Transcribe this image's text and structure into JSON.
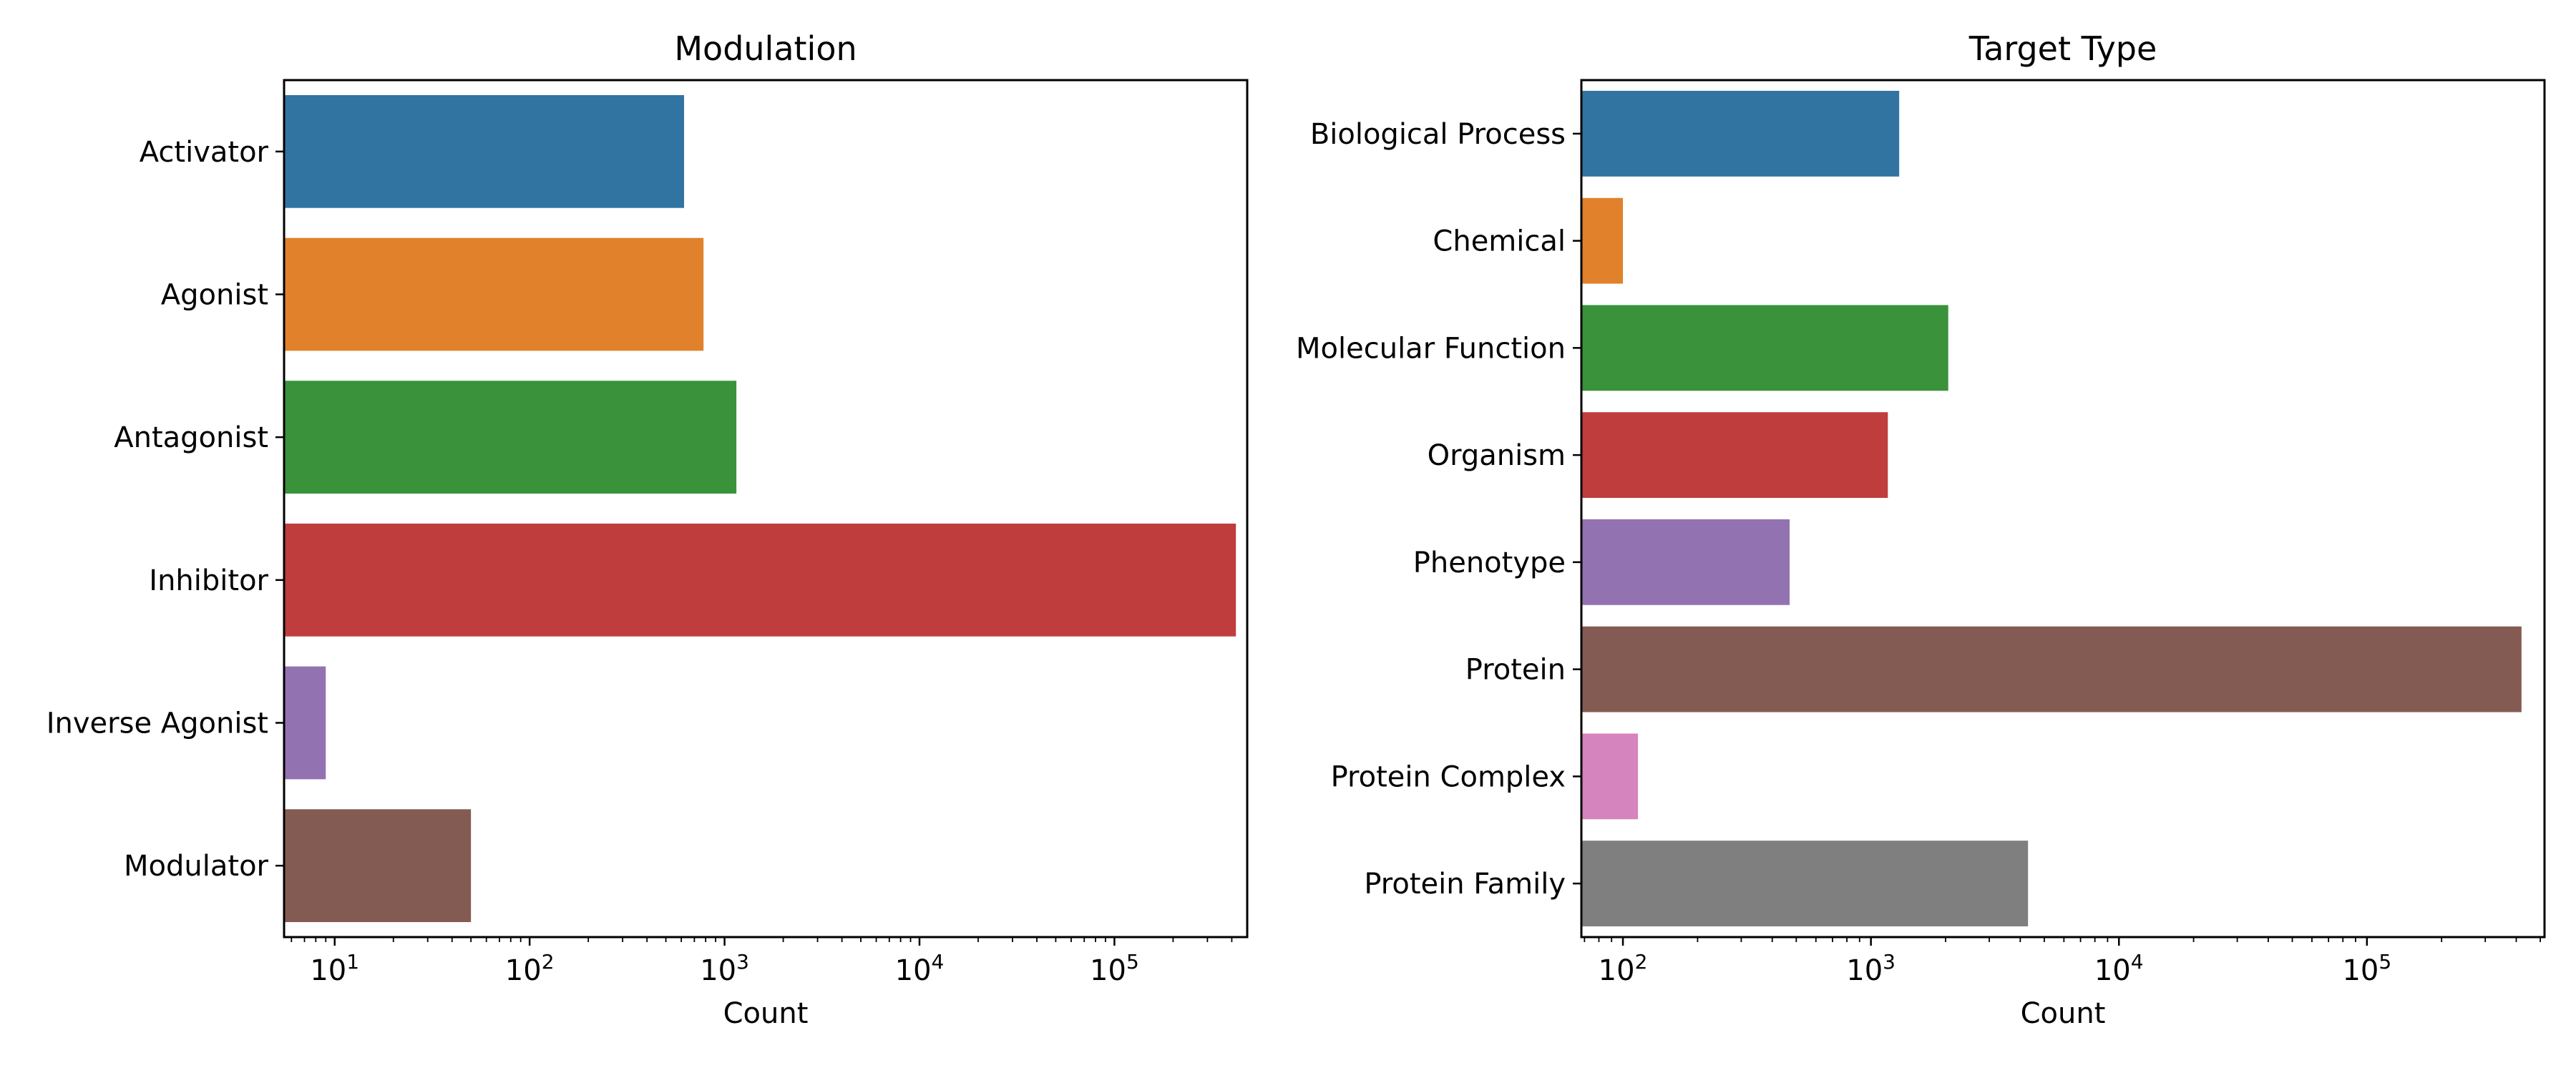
{
  "chart_data": [
    {
      "type": "bar",
      "orientation": "horizontal",
      "title": "Modulation",
      "xlabel": "Count",
      "ylabel": "",
      "xscale": "log",
      "xlim": [
        5.5,
        480000
      ],
      "xticks": [
        10,
        100,
        1000,
        10000,
        100000
      ],
      "xtick_labels": [
        {
          "base": "10",
          "exp": "1"
        },
        {
          "base": "10",
          "exp": "2"
        },
        {
          "base": "10",
          "exp": "3"
        },
        {
          "base": "10",
          "exp": "4"
        },
        {
          "base": "10",
          "exp": "5"
        }
      ],
      "categories": [
        "Activator",
        "Agonist",
        "Antagonist",
        "Inhibitor",
        "Inverse Agonist",
        "Modulator"
      ],
      "values": [
        620,
        780,
        1150,
        420000,
        9,
        50
      ],
      "colors": [
        "#3274a1",
        "#e1812c",
        "#3a923a",
        "#c03d3e",
        "#9372b2",
        "#845b53"
      ],
      "grid": false,
      "legend": "none"
    },
    {
      "type": "bar",
      "orientation": "horizontal",
      "title": "Target Type",
      "xlabel": "Count",
      "ylabel": "",
      "xscale": "log",
      "xlim": [
        68,
        520000
      ],
      "xticks": [
        100,
        1000,
        10000,
        100000
      ],
      "xtick_labels": [
        {
          "base": "10",
          "exp": "2"
        },
        {
          "base": "10",
          "exp": "3"
        },
        {
          "base": "10",
          "exp": "4"
        },
        {
          "base": "10",
          "exp": "5"
        }
      ],
      "categories": [
        "Biological Process",
        "Chemical",
        "Molecular Function",
        "Organism",
        "Phenotype",
        "Protein",
        "Protein Complex",
        "Protein Family"
      ],
      "values": [
        1300,
        100,
        2050,
        1170,
        470,
        420000,
        115,
        4300
      ],
      "colors": [
        "#3274a1",
        "#e1812c",
        "#3a923a",
        "#c03d3e",
        "#9372b2",
        "#845b53",
        "#d684bd",
        "#7f7f7f"
      ],
      "grid": false,
      "legend": "none"
    }
  ]
}
